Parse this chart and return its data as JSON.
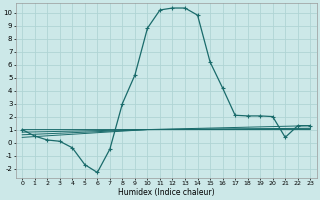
{
  "title": "",
  "xlabel": "Humidex (Indice chaleur)",
  "bg_color": "#cce8e8",
  "grid_color": "#b0d4d4",
  "line_color": "#1a6b6b",
  "xlim": [
    -0.5,
    23.5
  ],
  "ylim": [
    -2.7,
    10.7
  ],
  "xticks": [
    0,
    1,
    2,
    3,
    4,
    5,
    6,
    7,
    8,
    9,
    10,
    11,
    12,
    13,
    14,
    15,
    16,
    17,
    18,
    19,
    20,
    21,
    22,
    23
  ],
  "yticks": [
    -2,
    -1,
    0,
    1,
    2,
    3,
    4,
    5,
    6,
    7,
    8,
    9,
    10
  ],
  "main_series": [
    [
      0,
      1.0
    ],
    [
      1,
      0.5
    ],
    [
      2,
      0.2
    ],
    [
      3,
      0.1
    ],
    [
      4,
      -0.4
    ],
    [
      5,
      -1.7
    ],
    [
      6,
      -2.3
    ],
    [
      7,
      -0.5
    ],
    [
      8,
      3.0
    ],
    [
      9,
      5.2
    ],
    [
      10,
      8.8
    ],
    [
      11,
      10.2
    ],
    [
      12,
      10.35
    ],
    [
      13,
      10.35
    ],
    [
      14,
      9.8
    ],
    [
      15,
      6.2
    ],
    [
      16,
      4.2
    ],
    [
      17,
      2.1
    ],
    [
      18,
      2.05
    ],
    [
      19,
      2.05
    ],
    [
      20,
      2.0
    ],
    [
      21,
      0.4
    ],
    [
      22,
      1.3
    ],
    [
      23,
      1.3
    ]
  ],
  "flat_series": [
    [
      [
        0,
        1.0
      ],
      [
        10,
        1.0
      ],
      [
        23,
        1.3
      ]
    ],
    [
      [
        0,
        0.8
      ],
      [
        10,
        1.0
      ],
      [
        23,
        1.1
      ]
    ],
    [
      [
        0,
        0.6
      ],
      [
        10,
        1.0
      ],
      [
        23,
        1.05
      ]
    ],
    [
      [
        0,
        0.4
      ],
      [
        10,
        1.0
      ],
      [
        23,
        1.0
      ]
    ]
  ]
}
